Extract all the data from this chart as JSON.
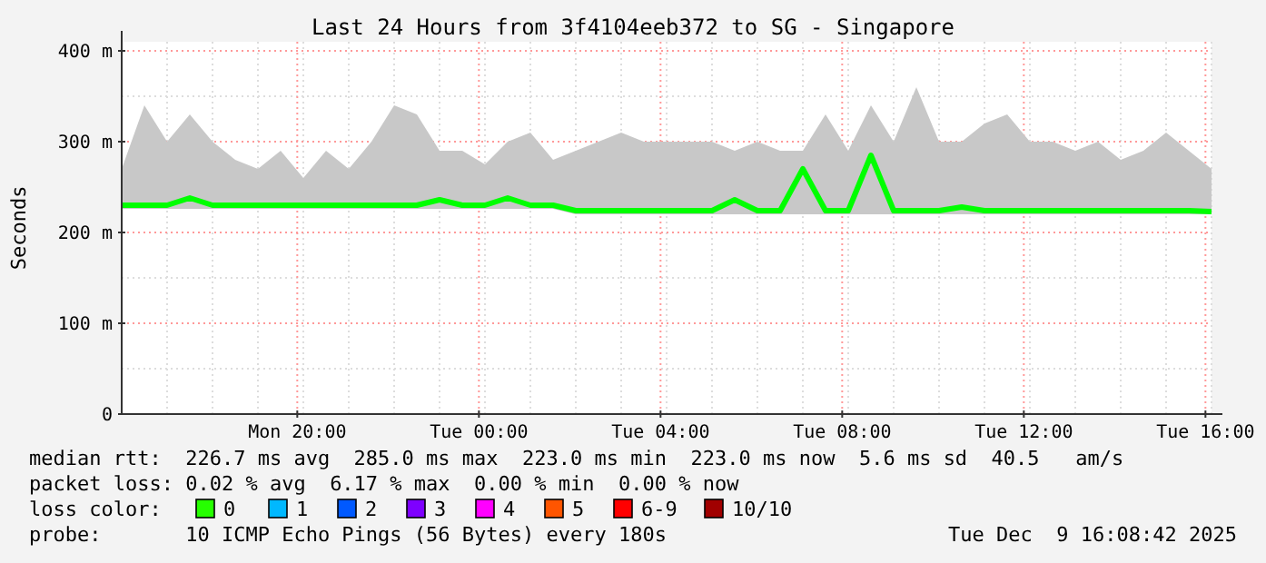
{
  "chart_data": {
    "type": "line",
    "title": "Last 24 Hours from 3f4104eeb372 to SG - Singapore",
    "ylabel": "Seconds",
    "x": [
      "2025-12-08T16:08",
      "2025-12-08T16:38",
      "2025-12-08T17:08",
      "2025-12-08T17:38",
      "2025-12-08T18:08",
      "2025-12-08T18:38",
      "2025-12-08T19:08",
      "2025-12-08T19:38",
      "2025-12-08T20:08",
      "2025-12-08T20:38",
      "2025-12-08T21:08",
      "2025-12-08T21:38",
      "2025-12-08T22:08",
      "2025-12-08T22:38",
      "2025-12-08T23:08",
      "2025-12-08T23:38",
      "2025-12-09T00:08",
      "2025-12-09T00:38",
      "2025-12-09T01:08",
      "2025-12-09T01:38",
      "2025-12-09T02:08",
      "2025-12-09T02:38",
      "2025-12-09T03:08",
      "2025-12-09T03:38",
      "2025-12-09T04:08",
      "2025-12-09T04:38",
      "2025-12-09T05:08",
      "2025-12-09T05:38",
      "2025-12-09T06:08",
      "2025-12-09T06:38",
      "2025-12-09T07:08",
      "2025-12-09T07:38",
      "2025-12-09T08:08",
      "2025-12-09T08:38",
      "2025-12-09T09:08",
      "2025-12-09T09:38",
      "2025-12-09T10:08",
      "2025-12-09T10:38",
      "2025-12-09T11:08",
      "2025-12-09T11:38",
      "2025-12-09T12:08",
      "2025-12-09T12:38",
      "2025-12-09T13:08",
      "2025-12-09T13:38",
      "2025-12-09T14:08",
      "2025-12-09T14:38",
      "2025-12-09T15:08",
      "2025-12-09T15:38",
      "2025-12-09T16:08"
    ],
    "series": [
      {
        "color": "#00ff00",
        "values": [
          230,
          230,
          230,
          238,
          230,
          230,
          230,
          230,
          230,
          230,
          230,
          230,
          230,
          230,
          236,
          230,
          230,
          238,
          230,
          230,
          224,
          224,
          224,
          224,
          224,
          224,
          224,
          236,
          224,
          224,
          270,
          224,
          224,
          285,
          224,
          224,
          224,
          228,
          224,
          224,
          224,
          224,
          224,
          224,
          224,
          224,
          224,
          224,
          223
        ],
        "lower": [
          226,
          226,
          226,
          226,
          226,
          226,
          226,
          226,
          226,
          226,
          226,
          226,
          226,
          226,
          226,
          226,
          226,
          226,
          226,
          226,
          220,
          220,
          220,
          220,
          220,
          220,
          220,
          220,
          220,
          220,
          220,
          220,
          220,
          220,
          220,
          220,
          220,
          220,
          220,
          220,
          220,
          220,
          220,
          220,
          220,
          220,
          220,
          220,
          220
        ],
        "upper": [
          270,
          340,
          300,
          330,
          300,
          280,
          270,
          290,
          260,
          290,
          270,
          300,
          340,
          330,
          290,
          290,
          275,
          300,
          310,
          280,
          290,
          300,
          310,
          300,
          300,
          300,
          300,
          290,
          300,
          290,
          290,
          330,
          290,
          340,
          300,
          360,
          300,
          300,
          320,
          330,
          300,
          300,
          290,
          300,
          280,
          290,
          310,
          290,
          270
        ]
      }
    ],
    "xlim": [
      "2025-12-08T16:08",
      "2025-12-09T16:08"
    ],
    "xticks": [
      {
        "value": "2025-12-08T20:00",
        "label": "Mon 20:00"
      },
      {
        "value": "2025-12-09T00:00",
        "label": "Tue 00:00"
      },
      {
        "value": "2025-12-09T04:00",
        "label": "Tue 04:00"
      },
      {
        "value": "2025-12-09T08:00",
        "label": "Tue 08:00"
      },
      {
        "value": "2025-12-09T12:00",
        "label": "Tue 12:00"
      },
      {
        "value": "2025-12-09T16:00",
        "label": "Tue 16:00"
      }
    ],
    "ylim": [
      0,
      410
    ],
    "yticks": [
      0,
      {
        "value": 100,
        "label": "100 m"
      },
      {
        "value": 200,
        "label": "200 m"
      },
      {
        "value": 300,
        "label": "300 m"
      },
      {
        "value": 400,
        "label": "400 m"
      }
    ],
    "grid": true,
    "annotations": [
      "median rtt:  226.7 ms avg  285.0 ms max  223.0 ms min  223.0 ms now  5.6 ms sd  40.5   am/s",
      "packet loss: 0.02 % avg  6.17 % max  0.00 % min  0.00 % now",
      "loss color:",
      "0",
      "1",
      "2",
      "3",
      "4",
      "5",
      "6-9",
      "10/10",
      "probe:       10 ICMP Echo Pings (56 Bytes) every 180s",
      "Tue Dec  9 16:08:42 2025"
    ]
  }
}
